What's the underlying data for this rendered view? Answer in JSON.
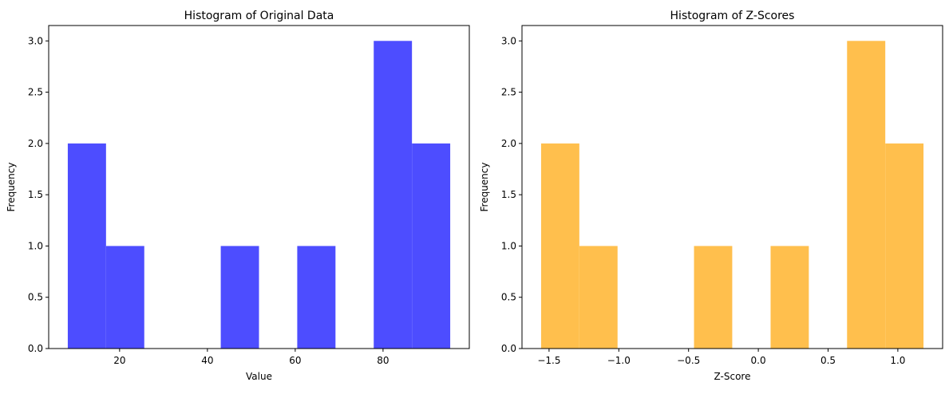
{
  "chart_data": [
    {
      "type": "bar",
      "title": "Histogram of Original Data",
      "xlabel": "Value",
      "ylabel": "Frequency",
      "bin_edges": [
        8.2,
        16.91,
        25.62,
        34.33,
        43.04,
        51.75,
        60.46,
        69.17,
        77.88,
        86.59,
        95.3
      ],
      "counts": [
        2,
        1,
        0,
        0,
        1,
        0,
        1,
        0,
        3,
        2
      ],
      "xlim": [
        3.85,
        99.65
      ],
      "ylim": [
        0,
        3.15
      ],
      "xticks": [
        20,
        40,
        60,
        80
      ],
      "xtick_labels": [
        "20",
        "40",
        "60",
        "80"
      ],
      "yticks": [
        0,
        0.5,
        1,
        1.5,
        2,
        2.5,
        3
      ],
      "ytick_labels": [
        "0.0",
        "0.5",
        "1.0",
        "1.5",
        "2.0",
        "2.5",
        "3.0"
      ],
      "color": "#4d4dff",
      "grid": false
    },
    {
      "type": "bar",
      "title": "Histogram of Z-Scores",
      "xlabel": "Z-Score",
      "ylabel": "Frequency",
      "bin_edges": [
        -1.557,
        -1.283,
        -1.009,
        -0.735,
        -0.461,
        -0.187,
        0.088,
        0.362,
        0.636,
        0.91,
        1.184
      ],
      "counts": [
        2,
        1,
        0,
        0,
        1,
        0,
        1,
        0,
        3,
        2
      ],
      "xlim": [
        -1.694,
        1.321
      ],
      "ylim": [
        0,
        3.15
      ],
      "xticks": [
        -1.5,
        -1.0,
        -0.5,
        0.0,
        0.5,
        1.0
      ],
      "xtick_labels": [
        "−1.5",
        "−1.0",
        "−0.5",
        "0.0",
        "0.5",
        "1.0"
      ],
      "yticks": [
        0,
        0.5,
        1,
        1.5,
        2,
        2.5,
        3
      ],
      "ytick_labels": [
        "0.0",
        "0.5",
        "1.0",
        "1.5",
        "2.0",
        "2.5",
        "3.0"
      ],
      "color": "#ffbf4d",
      "grid": false
    }
  ]
}
